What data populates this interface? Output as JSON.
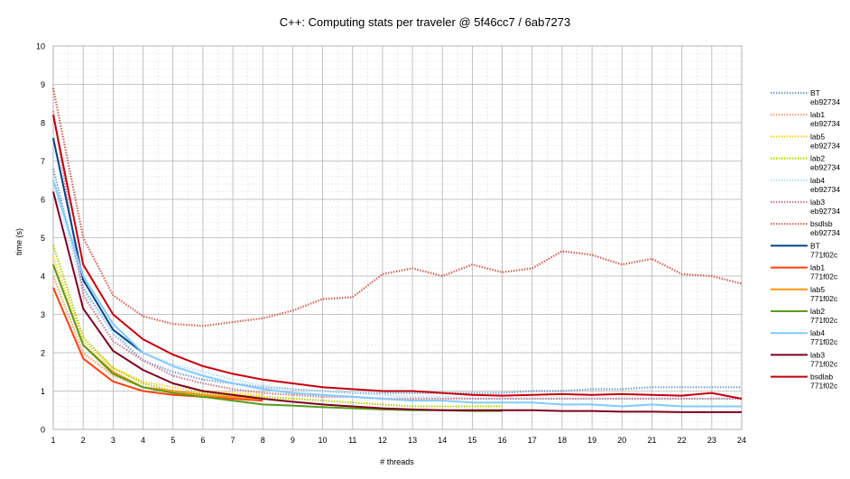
{
  "chart_data": {
    "type": "line",
    "title": "C++: Computing stats per traveler @ 5f46cc7 / 6ab7273",
    "xlabel": "# threads",
    "ylabel": "time (s)",
    "xlim": [
      1,
      24
    ],
    "ylim": [
      0,
      10
    ],
    "xticks": [
      1,
      2,
      3,
      4,
      5,
      6,
      7,
      8,
      9,
      10,
      11,
      12,
      13,
      14,
      15,
      16,
      17,
      18,
      19,
      20,
      21,
      22,
      23,
      24
    ],
    "yticks": [
      0,
      1,
      2,
      3,
      4,
      5,
      6,
      7,
      8,
      9,
      10
    ],
    "grid": true,
    "legend_position": "right",
    "series": [
      {
        "name": "BT",
        "sub": "eb92734",
        "color": "#729fcf",
        "dash": "dotted",
        "x": [
          1,
          2,
          3,
          4,
          5,
          6,
          7,
          8,
          9,
          10,
          11,
          12,
          13,
          14,
          15,
          16,
          17,
          18,
          19,
          20,
          21,
          22,
          23,
          24
        ],
        "y": [
          6.8,
          3.7,
          2.5,
          1.8,
          1.5,
          1.3,
          1.2,
          1.1,
          1.05,
          1.0,
          0.95,
          0.95,
          0.95,
          0.95,
          0.95,
          0.95,
          1.0,
          1.0,
          1.05,
          1.05,
          1.1,
          1.1,
          1.1,
          1.1
        ]
      },
      {
        "name": "lab1",
        "sub": "eb92734",
        "color": "#ff9966",
        "dash": "dotted",
        "x": [
          1,
          2,
          3,
          4,
          5,
          6,
          7,
          8
        ],
        "y": [
          4.0,
          2.0,
          1.4,
          1.1,
          1.0,
          0.95,
          0.9,
          0.85
        ]
      },
      {
        "name": "lab5",
        "sub": "eb92734",
        "color": "#ffd320",
        "dash": "dotted",
        "x": [
          1,
          2,
          3,
          4,
          5,
          6,
          7,
          8
        ],
        "y": [
          4.5,
          2.3,
          1.6,
          1.25,
          1.1,
          1.0,
          0.95,
          0.9
        ]
      },
      {
        "name": "lab2",
        "sub": "eb92734",
        "color": "#aecf00",
        "dash": "dotted",
        "x": [
          1,
          2,
          3,
          4,
          5,
          6,
          7,
          8,
          9,
          10,
          11,
          12,
          13,
          14,
          15,
          16
        ],
        "y": [
          4.8,
          2.4,
          1.6,
          1.2,
          1.0,
          0.95,
          0.9,
          0.85,
          0.8,
          0.75,
          0.7,
          0.65,
          0.6,
          0.6,
          0.6,
          0.6
        ]
      },
      {
        "name": "lab4",
        "sub": "eb92734",
        "color": "#b4e0ff",
        "dash": "dotted",
        "x": [
          1,
          2,
          3,
          4,
          5,
          6,
          7,
          8,
          9,
          10,
          11,
          12,
          13,
          14,
          15,
          16,
          17,
          18,
          19,
          20,
          21,
          22,
          23,
          24
        ],
        "y": [
          6.5,
          3.6,
          2.5,
          2.0,
          1.7,
          1.5,
          1.3,
          1.15,
          1.05,
          1.0,
          0.95,
          0.9,
          0.85,
          0.85,
          0.8,
          0.8,
          0.8,
          0.8,
          0.8,
          0.8,
          0.8,
          0.8,
          0.8,
          0.8
        ]
      },
      {
        "name": "lab3",
        "sub": "eb92734",
        "color": "#c9788a",
        "dash": "dotted",
        "x": [
          1,
          2,
          3,
          4,
          5,
          6,
          7,
          8,
          9,
          10,
          11,
          12,
          13,
          14,
          15,
          16,
          17,
          18,
          19,
          20,
          21,
          22,
          23,
          24
        ],
        "y": [
          8.3,
          3.5,
          2.3,
          1.8,
          1.4,
          1.2,
          1.05,
          0.95,
          0.9,
          0.85,
          0.85,
          0.8,
          0.8,
          0.8,
          0.8,
          0.8,
          0.8,
          0.8,
          0.8,
          0.8,
          0.8,
          0.8,
          0.8,
          0.8
        ]
      },
      {
        "name": "bsdlsb",
        "sub": "eb92734",
        "color": "#d35b4e",
        "dash": "dotted",
        "x": [
          1,
          2,
          3,
          4,
          5,
          6,
          7,
          8,
          9,
          10,
          11,
          12,
          13,
          14,
          15,
          16,
          17,
          18,
          19,
          20,
          21,
          22,
          23,
          24
        ],
        "y": [
          8.9,
          5.0,
          3.5,
          2.95,
          2.75,
          2.7,
          2.8,
          2.9,
          3.1,
          3.4,
          3.45,
          4.05,
          4.2,
          4.0,
          4.3,
          4.1,
          4.2,
          4.65,
          4.55,
          4.3,
          4.45,
          4.05,
          4.0,
          3.8
        ]
      },
      {
        "name": "BT",
        "sub": "771f02c",
        "color": "#004586",
        "dash": "solid",
        "x": [
          1,
          2,
          3,
          4
        ],
        "y": [
          7.6,
          3.9,
          2.6,
          2.0
        ]
      },
      {
        "name": "lab1",
        "sub": "771f02c",
        "color": "#ff420e",
        "dash": "solid",
        "x": [
          1,
          2,
          3,
          4,
          5,
          6,
          7,
          8
        ],
        "y": [
          3.7,
          1.85,
          1.25,
          1.0,
          0.9,
          0.85,
          0.8,
          0.75
        ]
      },
      {
        "name": "lab5",
        "sub": "771f02c",
        "color": "#ff950e",
        "dash": "solid",
        "x": [
          1,
          2,
          3,
          4,
          5,
          6,
          7,
          8
        ],
        "y": [
          4.3,
          2.2,
          1.5,
          1.1,
          1.0,
          0.9,
          0.85,
          0.8
        ]
      },
      {
        "name": "lab2",
        "sub": "771f02c",
        "color": "#579d1c",
        "dash": "solid",
        "x": [
          1,
          2,
          3,
          4,
          5,
          6,
          7,
          8,
          9,
          10,
          11,
          12,
          13,
          14,
          15,
          16
        ],
        "y": [
          4.3,
          2.2,
          1.45,
          1.1,
          0.95,
          0.85,
          0.75,
          0.65,
          0.62,
          0.58,
          0.55,
          0.52,
          0.5,
          0.5,
          0.48,
          0.48
        ]
      },
      {
        "name": "lab4",
        "sub": "771f02c",
        "color": "#83caff",
        "dash": "solid",
        "x": [
          1,
          2,
          3,
          4,
          5,
          6,
          7,
          8,
          9,
          10,
          11,
          12,
          13,
          14,
          15,
          16,
          17,
          18,
          19,
          20,
          21,
          22,
          23,
          24
        ],
        "y": [
          6.5,
          4.0,
          2.75,
          2.0,
          1.65,
          1.4,
          1.2,
          1.05,
          0.95,
          0.9,
          0.85,
          0.8,
          0.75,
          0.75,
          0.7,
          0.7,
          0.7,
          0.65,
          0.65,
          0.6,
          0.65,
          0.6,
          0.6,
          0.6
        ]
      },
      {
        "name": "lab3",
        "sub": "771f02c",
        "color": "#7e0021",
        "dash": "solid",
        "x": [
          1,
          2,
          3,
          4,
          5,
          6,
          7,
          8,
          9,
          10,
          11,
          12,
          13,
          14,
          15,
          16,
          17,
          18,
          19,
          20,
          21,
          22,
          23,
          24
        ],
        "y": [
          6.2,
          3.15,
          2.05,
          1.55,
          1.2,
          1.0,
          0.9,
          0.8,
          0.72,
          0.65,
          0.6,
          0.55,
          0.52,
          0.5,
          0.5,
          0.5,
          0.5,
          0.48,
          0.48,
          0.46,
          0.46,
          0.45,
          0.45,
          0.45
        ]
      },
      {
        "name": "bsdlab",
        "sub": "771f02c",
        "color": "#c5000b",
        "dash": "solid",
        "x": [
          1,
          2,
          3,
          4,
          5,
          6,
          7,
          8,
          9,
          10,
          11,
          12,
          13,
          14,
          15,
          16,
          17,
          18,
          19,
          20,
          21,
          22,
          23,
          24
        ],
        "y": [
          8.2,
          4.3,
          3.0,
          2.35,
          1.95,
          1.65,
          1.45,
          1.3,
          1.2,
          1.1,
          1.05,
          1.0,
          1.0,
          0.95,
          0.9,
          0.88,
          0.9,
          0.92,
          0.9,
          0.92,
          0.9,
          0.88,
          0.95,
          0.8
        ]
      }
    ]
  }
}
